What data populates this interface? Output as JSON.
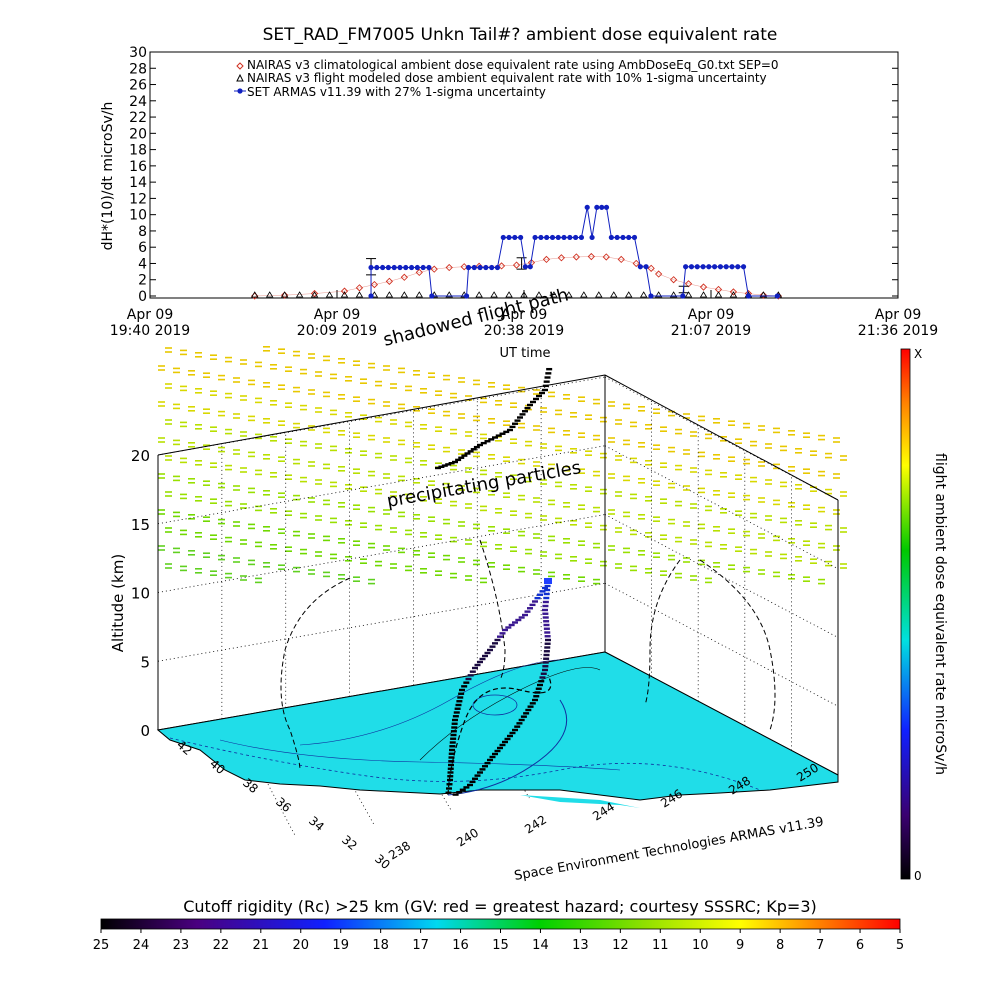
{
  "chart_data": [
    {
      "type": "line",
      "title": "SET_RAD_FM7005  Unkn Tail#? ambient dose equivalent rate",
      "ylabel": "dH*(10)/dt microSv/h",
      "xlabel": "UT time",
      "ylim": [
        0,
        30
      ],
      "yticks": [
        "0",
        "2",
        "4",
        "6",
        "8",
        "10",
        "12",
        "14",
        "16",
        "18",
        "20",
        "22",
        "24",
        "26",
        "28",
        "30"
      ],
      "xticks": [
        {
          "date": "Apr 09",
          "time": "19:40 2019"
        },
        {
          "date": "Apr 09",
          "time": "20:09 2019"
        },
        {
          "date": "Apr 09",
          "time": "20:38 2019"
        },
        {
          "date": "Apr 09",
          "time": "21:07 2019"
        },
        {
          "date": "Apr 09",
          "time": "21:36 2019"
        }
      ],
      "legend_position": "top",
      "series": [
        {
          "name": "NAIRAS v3 climatological ambient dose equivalent rate using AmbDoseEq_G0.txt SEP=0",
          "marker": "diamond",
          "color": "#d03020",
          "points": [
            [
              0.14,
              0.0
            ],
            [
              0.18,
              0.1
            ],
            [
              0.22,
              0.3
            ],
            [
              0.26,
              0.6
            ],
            [
              0.28,
              1.0
            ],
            [
              0.3,
              1.4
            ],
            [
              0.32,
              1.8
            ],
            [
              0.34,
              2.3
            ],
            [
              0.36,
              2.9
            ],
            [
              0.38,
              3.3
            ],
            [
              0.4,
              3.5
            ],
            [
              0.42,
              3.6
            ],
            [
              0.44,
              3.65
            ],
            [
              0.47,
              3.7
            ],
            [
              0.49,
              3.8
            ],
            [
              0.51,
              4.1
            ],
            [
              0.53,
              4.5
            ],
            [
              0.55,
              4.7
            ],
            [
              0.57,
              4.8
            ],
            [
              0.59,
              4.85
            ],
            [
              0.61,
              4.8
            ],
            [
              0.63,
              4.5
            ],
            [
              0.65,
              4.0
            ],
            [
              0.67,
              3.4
            ],
            [
              0.68,
              2.7
            ],
            [
              0.7,
              2.0
            ],
            [
              0.72,
              1.5
            ],
            [
              0.74,
              1.1
            ],
            [
              0.76,
              0.8
            ],
            [
              0.78,
              0.5
            ],
            [
              0.8,
              0.3
            ],
            [
              0.82,
              0.1
            ],
            [
              0.84,
              0.0
            ]
          ]
        },
        {
          "name": "NAIRAS v3 flight modeled dose ambient equivalent rate with 10% 1-sigma uncertainty",
          "marker": "triangle",
          "color": "#000000",
          "points": [
            [
              0.14,
              0.0
            ],
            [
              0.16,
              0.0
            ],
            [
              0.18,
              0.0
            ],
            [
              0.2,
              0.0
            ],
            [
              0.22,
              0.0
            ],
            [
              0.24,
              0.0
            ],
            [
              0.26,
              0.0
            ],
            [
              0.28,
              0.0
            ],
            [
              0.3,
              0.0
            ],
            [
              0.32,
              0.0
            ],
            [
              0.34,
              0.0
            ],
            [
              0.36,
              0.0
            ],
            [
              0.38,
              0.0
            ],
            [
              0.4,
              0.0
            ],
            [
              0.42,
              0.0
            ],
            [
              0.44,
              0.0
            ],
            [
              0.46,
              0.0
            ],
            [
              0.48,
              0.0
            ],
            [
              0.5,
              0.0
            ],
            [
              0.52,
              0.0
            ],
            [
              0.54,
              0.0
            ],
            [
              0.56,
              0.0
            ],
            [
              0.58,
              0.0
            ],
            [
              0.6,
              0.0
            ],
            [
              0.62,
              0.0
            ],
            [
              0.64,
              0.0
            ],
            [
              0.66,
              0.0
            ],
            [
              0.68,
              0.0
            ],
            [
              0.7,
              0.0
            ],
            [
              0.72,
              0.0
            ],
            [
              0.74,
              0.0
            ],
            [
              0.76,
              0.0
            ],
            [
              0.78,
              0.0
            ],
            [
              0.8,
              0.0
            ],
            [
              0.82,
              0.0
            ],
            [
              0.84,
              0.0
            ]
          ],
          "error_bars": [
            [
              0.2955,
              3.6,
              1.0
            ],
            [
              0.4968,
              4.0,
              0.7
            ],
            [
              0.7135,
              0.8,
              0.4
            ]
          ]
        },
        {
          "name": "SET ARMAS v11.39 with 27% 1-sigma uncertainty",
          "marker": "circle",
          "color": "#1020c0",
          "points": [
            [
              0.2955,
              0.0
            ],
            [
              0.2955,
              3.5
            ],
            [
              0.3032,
              3.5
            ],
            [
              0.311,
              3.5
            ],
            [
              0.3187,
              3.5
            ],
            [
              0.3265,
              3.5
            ],
            [
              0.3342,
              3.5
            ],
            [
              0.3419,
              3.5
            ],
            [
              0.3497,
              3.5
            ],
            [
              0.3574,
              3.5
            ],
            [
              0.3652,
              3.5
            ],
            [
              0.3729,
              3.5
            ],
            [
              0.3768,
              0.0
            ],
            [
              0.4232,
              0.0
            ],
            [
              0.4258,
              3.5
            ],
            [
              0.4335,
              3.5
            ],
            [
              0.4413,
              3.5
            ],
            [
              0.449,
              3.5
            ],
            [
              0.4568,
              3.5
            ],
            [
              0.4645,
              3.5
            ],
            [
              0.4723,
              7.2
            ],
            [
              0.48,
              7.2
            ],
            [
              0.4877,
              7.2
            ],
            [
              0.4955,
              7.2
            ],
            [
              0.5019,
              3.6
            ],
            [
              0.5084,
              3.6
            ],
            [
              0.5148,
              7.2
            ],
            [
              0.5226,
              7.2
            ],
            [
              0.5303,
              7.2
            ],
            [
              0.5381,
              7.2
            ],
            [
              0.5458,
              7.2
            ],
            [
              0.5535,
              7.2
            ],
            [
              0.5613,
              7.2
            ],
            [
              0.569,
              7.2
            ],
            [
              0.5768,
              7.2
            ],
            [
              0.5845,
              10.9
            ],
            [
              0.591,
              7.2
            ],
            [
              0.5974,
              10.9
            ],
            [
              0.6039,
              10.9
            ],
            [
              0.6103,
              10.9
            ],
            [
              0.6168,
              7.2
            ],
            [
              0.6245,
              7.2
            ],
            [
              0.6323,
              7.2
            ],
            [
              0.64,
              7.2
            ],
            [
              0.6477,
              7.2
            ],
            [
              0.6555,
              3.6
            ],
            [
              0.6632,
              3.6
            ],
            [
              0.6697,
              0.0
            ],
            [
              0.7123,
              0.0
            ],
            [
              0.7161,
              3.6
            ],
            [
              0.7239,
              3.6
            ],
            [
              0.7316,
              3.6
            ],
            [
              0.7394,
              3.6
            ],
            [
              0.7471,
              3.6
            ],
            [
              0.7548,
              3.6
            ],
            [
              0.7626,
              3.6
            ],
            [
              0.7703,
              3.6
            ],
            [
              0.7781,
              3.6
            ],
            [
              0.7858,
              3.6
            ],
            [
              0.7935,
              3.6
            ],
            [
              0.8,
              0.0
            ],
            [
              0.8387,
              0.0
            ]
          ]
        }
      ]
    },
    {
      "type": "scatter3d",
      "zlabel": "Altitude (km)",
      "zticks": [
        "0",
        "5",
        "10",
        "15",
        "20"
      ],
      "lat_ticks": [
        "42",
        "40",
        "38",
        "36",
        "34",
        "32",
        "30"
      ],
      "lon_ticks": [
        "238",
        "240",
        "242",
        "244",
        "246",
        "248",
        "250"
      ],
      "annotations": [
        "shadowed flight path",
        "precipitating particles"
      ],
      "caption": "Space Environment Technologies ARMAS v11.39",
      "colorbar_label": "flight ambient dose equivalent rate microSv/h",
      "colorbar_range": [
        "0",
        "X"
      ]
    },
    {
      "type": "colorbar",
      "title": "Cutoff rigidity (Rc) >25 km (GV: red = greatest hazard; courtesy SSSRC; Kp=3)",
      "ticks": [
        "25",
        "24",
        "23",
        "22",
        "21",
        "20",
        "19",
        "18",
        "17",
        "16",
        "15",
        "14",
        "13",
        "12",
        "11",
        "10",
        "9",
        "8",
        "7",
        "6",
        "5"
      ]
    }
  ]
}
